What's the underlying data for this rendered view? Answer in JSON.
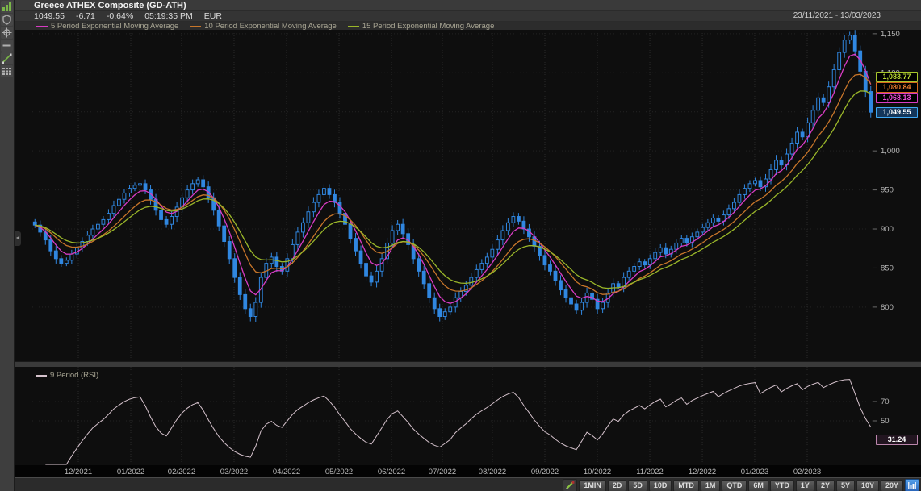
{
  "header": {
    "title": "Greece ATHEX Composite (GD-ATH)",
    "last_price": "1049.55",
    "change": "-6.71",
    "change_pct": "-0.64%",
    "time": "05:19:35 PM",
    "currency": "EUR",
    "date_range": "23/11/2021 - 13/03/2023"
  },
  "legend": {
    "main": [
      {
        "label": "5 Period Exponential Moving Average",
        "color": "#d83cc4",
        "period": 5
      },
      {
        "label": "10 Period Exponential Moving Average",
        "color": "#c8762a",
        "period": 10
      },
      {
        "label": "15 Period Exponential Moving Average",
        "color": "#9ab629",
        "period": 15
      }
    ],
    "rsi": {
      "label": "9 Period (RSI)",
      "color": "#d5c2cc"
    }
  },
  "badges": {
    "ema15": {
      "value": "1,083.77",
      "price": 1083.77
    },
    "ema10": {
      "value": "1,080.84",
      "price": 1080.84
    },
    "ema5": {
      "value": "1,068.13",
      "price": 1068.13
    },
    "last": {
      "value": "1,049.55",
      "price": 1049.55
    },
    "rsi": {
      "value": "31.24",
      "rsi": 31.24
    }
  },
  "y_axis": {
    "labels": [
      {
        "text": "1,150",
        "price": 1150
      },
      {
        "text": "1,100",
        "price": 1100
      },
      {
        "text": "1,000",
        "price": 1000
      },
      {
        "text": "950",
        "price": 950
      },
      {
        "text": "900",
        "price": 900
      },
      {
        "text": "850",
        "price": 850
      },
      {
        "text": "800",
        "price": 800
      }
    ],
    "gridlines": [
      1150,
      1100,
      1050,
      1000,
      950,
      900,
      850,
      800
    ]
  },
  "x_axis": {
    "ticks": [
      {
        "label": "12/2021",
        "pos": 0.0547
      },
      {
        "label": "01/2022",
        "pos": 0.1171
      },
      {
        "label": "02/2022",
        "pos": 0.1775
      },
      {
        "label": "03/2022",
        "pos": 0.2399
      },
      {
        "label": "04/2022",
        "pos": 0.3023
      },
      {
        "label": "05/2022",
        "pos": 0.3647
      },
      {
        "label": "06/2022",
        "pos": 0.4271
      },
      {
        "label": "07/2022",
        "pos": 0.4875
      },
      {
        "label": "08/2022",
        "pos": 0.547
      },
      {
        "label": "09/2022",
        "pos": 0.6094
      },
      {
        "label": "10/2022",
        "pos": 0.6718
      },
      {
        "label": "11/2022",
        "pos": 0.7342
      },
      {
        "label": "12/2022",
        "pos": 0.7966
      },
      {
        "label": "01/2023",
        "pos": 0.8589
      },
      {
        "label": "02/2023",
        "pos": 0.9213
      }
    ]
  },
  "rsi_axis": {
    "labels": [
      {
        "text": "70",
        "value": 70
      },
      {
        "text": "50",
        "value": 50
      }
    ]
  },
  "toolbar": {
    "buttons": [
      "1MIN",
      "2D",
      "5D",
      "10D",
      "MTD",
      "1M",
      "QTD",
      "6M",
      "YTD",
      "1Y",
      "2Y",
      "5Y",
      "10Y",
      "20Y"
    ],
    "icons": [
      "draw-tool-icon",
      "chart-settings-icon"
    ]
  },
  "rail_icons": [
    "bar-chart-icon",
    "shield-icon",
    "crosshair-icon",
    "horizontal-line-icon",
    "trendline-icon",
    "grid-icon"
  ],
  "colors": {
    "candle": "#3087e0",
    "background": "#0e0e0e",
    "grid": "#2a2a2a",
    "axis_text": "#b9b9b9"
  },
  "chart_data": {
    "type": "candlestick",
    "title": "Greece ATHEX Composite (GD-ATH)",
    "currency": "EUR",
    "date_range": [
      "23/11/2021",
      "13/03/2023"
    ],
    "ylim": [
      731,
      1154
    ],
    "last_close": 1049.55,
    "closes": [
      905,
      896,
      886,
      872,
      862,
      856,
      860,
      868,
      876,
      884,
      892,
      900,
      906,
      912,
      920,
      930,
      938,
      946,
      952,
      956,
      958,
      950,
      938,
      924,
      912,
      906,
      916,
      928,
      940,
      950,
      958,
      963,
      954,
      940,
      924,
      904,
      884,
      862,
      838,
      816,
      798,
      788,
      806,
      838,
      856,
      864,
      852,
      846,
      862,
      880,
      896,
      908,
      922,
      934,
      944,
      952,
      944,
      934,
      920,
      906,
      888,
      872,
      856,
      840,
      832,
      846,
      862,
      882,
      898,
      906,
      894,
      880,
      862,
      846,
      830,
      812,
      798,
      788,
      794,
      800,
      812,
      820,
      828,
      838,
      848,
      856,
      864,
      874,
      886,
      898,
      908,
      916,
      910,
      900,
      890,
      878,
      866,
      854,
      846,
      834,
      822,
      812,
      804,
      796,
      806,
      818,
      810,
      798,
      806,
      818,
      830,
      826,
      838,
      846,
      852,
      858,
      854,
      862,
      870,
      876,
      868,
      874,
      882,
      888,
      882,
      890,
      896,
      902,
      908,
      914,
      910,
      918,
      926,
      934,
      944,
      952,
      958,
      962,
      954,
      964,
      976,
      988,
      982,
      996,
      1010,
      1024,
      1018,
      1036,
      1052,
      1068,
      1062,
      1082,
      1104,
      1126,
      1142,
      1148,
      1128,
      1102,
      1076,
      1049.55
    ],
    "overlays": [
      {
        "name": "5 Period Exponential Moving Average",
        "period": 5,
        "color": "#d83cc4",
        "last": 1068.13
      },
      {
        "name": "10 Period Exponential Moving Average",
        "period": 10,
        "color": "#c8762a",
        "last": 1080.84
      },
      {
        "name": "15 Period Exponential Moving Average",
        "period": 15,
        "color": "#9ab629",
        "last": 1083.77
      }
    ],
    "lower_panel": {
      "type": "line",
      "name": "9 Period (RSI)",
      "period": 9,
      "color": "#d5c2cc",
      "last": 31.24,
      "visible_ticks": [
        70,
        50
      ]
    }
  }
}
